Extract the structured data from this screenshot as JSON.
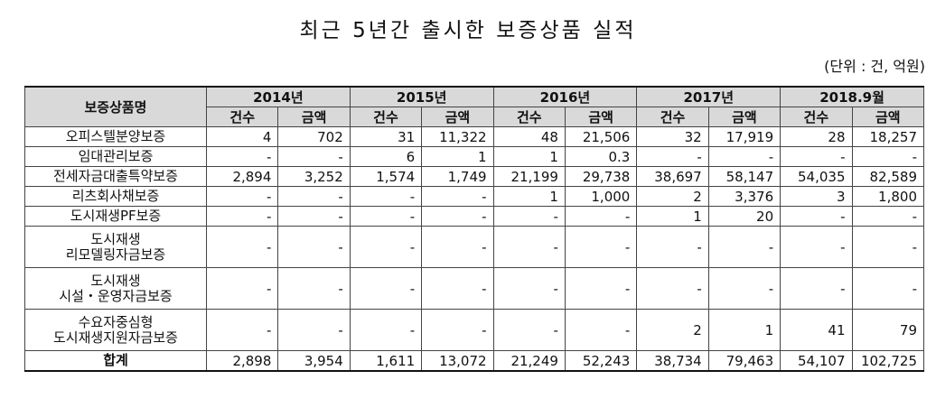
{
  "title": "최근 5년간 출시한 보증상품 실적",
  "unit": "(단위 : 건, 억원)",
  "table": {
    "name_header": "보증상품명",
    "years": [
      "2014년",
      "2015년",
      "2016년",
      "2017년",
      "2018.9월"
    ],
    "sub_headers": [
      "건수",
      "금액"
    ],
    "rows": [
      {
        "name": [
          "오피스텔분양보증"
        ],
        "cells": [
          "4",
          "702",
          "31",
          "11,322",
          "48",
          "21,506",
          "32",
          "17,919",
          "28",
          "18,257"
        ]
      },
      {
        "name": [
          "임대관리보증"
        ],
        "cells": [
          "-",
          "-",
          "6",
          "1",
          "1",
          "0.3",
          "-",
          "-",
          "-",
          "-"
        ]
      },
      {
        "name": [
          "전세자금대출특약보증"
        ],
        "cells": [
          "2,894",
          "3,252",
          "1,574",
          "1,749",
          "21,199",
          "29,738",
          "38,697",
          "58,147",
          "54,035",
          "82,589"
        ]
      },
      {
        "name": [
          "리츠회사채보증"
        ],
        "cells": [
          "-",
          "-",
          "-",
          "-",
          "1",
          "1,000",
          "2",
          "3,376",
          "3",
          "1,800"
        ]
      },
      {
        "name": [
          "도시재생PF보증"
        ],
        "cells": [
          "-",
          "-",
          "-",
          "-",
          "-",
          "-",
          "1",
          "20",
          "-",
          "-"
        ]
      },
      {
        "name": [
          "도시재생",
          "리모델링자금보증"
        ],
        "cells": [
          "-",
          "-",
          "-",
          "-",
          "-",
          "-",
          "-",
          "-",
          "-",
          "-"
        ]
      },
      {
        "name": [
          "도시재생",
          "시설・운영자금보증"
        ],
        "cells": [
          "-",
          "-",
          "-",
          "-",
          "-",
          "-",
          "-",
          "-",
          "-",
          "-"
        ]
      },
      {
        "name": [
          "수요자중심형",
          "도시재생지원자금보증"
        ],
        "cells": [
          "-",
          "-",
          "-",
          "-",
          "-",
          "-",
          "2",
          "1",
          "41",
          "79"
        ]
      }
    ],
    "total": {
      "name": "합계",
      "cells": [
        "2,898",
        "3,954",
        "1,611",
        "13,072",
        "21,249",
        "52,243",
        "38,734",
        "79,463",
        "54,107",
        "102,725"
      ]
    }
  }
}
